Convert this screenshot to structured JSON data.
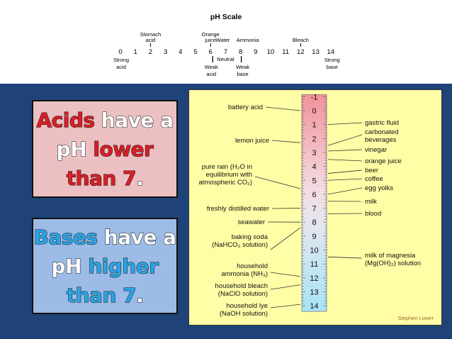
{
  "scale": {
    "title": "pH Scale",
    "numbers": [
      "0",
      "1",
      "2",
      "3",
      "4",
      "5",
      "6",
      "7",
      "8",
      "9",
      "10",
      "11",
      "12",
      "13",
      "14"
    ],
    "top_labels": [
      {
        "lines": [
          "Stomach",
          "acid"
        ],
        "at": "2"
      },
      {
        "lines": [
          "Orange",
          "juice"
        ],
        "at": "6"
      },
      {
        "lines": [
          "Water"
        ],
        "at": "7"
      },
      {
        "lines": [
          "Ammonia"
        ],
        "at": "8"
      },
      {
        "lines": [
          "Bleach"
        ],
        "at": "12"
      }
    ],
    "bottom_labels": [
      {
        "lines": [
          "Strong",
          "acid"
        ],
        "at": "0"
      },
      {
        "lines": [
          "Weak",
          "acid"
        ],
        "at": "6"
      },
      {
        "lines": [
          "Neutral"
        ],
        "at": "7"
      },
      {
        "lines": [
          "Weak",
          "base"
        ],
        "at": "8"
      },
      {
        "lines": [
          "Strong",
          "base"
        ],
        "at": "14"
      }
    ]
  },
  "acid_card": {
    "w1": "Acids",
    "w2": "have a",
    "w3": "pH",
    "w4": "lower",
    "w5": "than 7",
    "w6": "."
  },
  "base_card": {
    "w1": "Bases",
    "w2": "have a",
    "w3": "pH",
    "w4": "higher",
    "w5": "than 7",
    "w6": "."
  },
  "chart": {
    "ticks": [
      "-1",
      "0",
      "1",
      "2",
      "3",
      "4",
      "5",
      "6",
      "7",
      "8",
      "9",
      "10",
      "11",
      "12",
      "13",
      "14"
    ],
    "left_items": [
      {
        "lines": [
          "battery acid"
        ],
        "ph": 0
      },
      {
        "lines": [
          "lemon juice"
        ],
        "ph": 2.3
      },
      {
        "lines": [
          "pure rain (H₂O in",
          "equilibrium with",
          "atmospheric CO₂)"
        ],
        "ph": 5.6
      },
      {
        "lines": [
          "freshly distilled water"
        ],
        "ph": 7
      },
      {
        "lines": [
          "seawater"
        ],
        "ph": 8
      },
      {
        "lines": [
          "baking soda",
          "(NaHCO₃ solution)"
        ],
        "ph": 8.4
      },
      {
        "lines": [
          "household",
          "ammonia (NH₃)"
        ],
        "ph": 11.9
      },
      {
        "lines": [
          "household bleach",
          "(NaClO solution)"
        ],
        "ph": 12.5
      },
      {
        "lines": [
          "household lye",
          "(NaOH solution)"
        ],
        "ph": 13.9
      }
    ],
    "right_items": [
      {
        "lines": [
          "gastric fluid"
        ],
        "ph": 1
      },
      {
        "lines": [
          "carbonated",
          "beverages"
        ],
        "ph": 2.5
      },
      {
        "lines": [
          "vinegar"
        ],
        "ph": 2.9
      },
      {
        "lines": [
          "orange juice"
        ],
        "ph": 3.5
      },
      {
        "lines": [
          "beer"
        ],
        "ph": 4.5
      },
      {
        "lines": [
          "coffee"
        ],
        "ph": 5
      },
      {
        "lines": [
          "egg yolks"
        ],
        "ph": 6
      },
      {
        "lines": [
          "milk"
        ],
        "ph": 6.5
      },
      {
        "lines": [
          "blood"
        ],
        "ph": 7.4
      },
      {
        "lines": [
          "milk of magnesia",
          "(Mg(OH)₂) solution"
        ],
        "ph": 10.5
      }
    ],
    "credit": "Stephen Lower"
  }
}
